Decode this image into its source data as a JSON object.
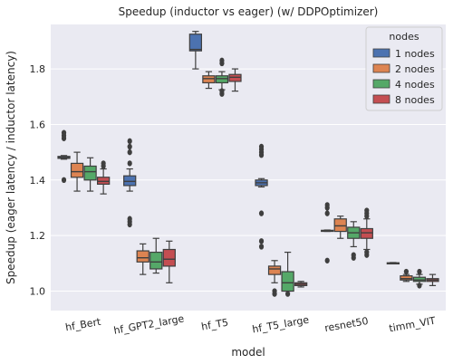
{
  "chart_data": {
    "type": "box",
    "title": "Speedup (inductor vs eager) (w/ DDPOptimizer)",
    "xlabel": "model",
    "ylabel": "Speedup (eager latency / inductor latency)",
    "ylim": [
      0.93,
      1.96
    ],
    "yticks": [
      "1.0",
      "1.2",
      "1.4",
      "1.6",
      "1.8"
    ],
    "categories": [
      "hf_Bert",
      "hf_GPT2_large",
      "hf_T5",
      "hf_T5_large",
      "resnet50",
      "timm_VIT"
    ],
    "grid": true,
    "legend": {
      "title": "nodes",
      "placement": "top-right"
    },
    "series": [
      {
        "name": "1 nodes",
        "color": "#4c72b0",
        "boxes": [
          {
            "whislo": 1.475,
            "q1": 1.478,
            "med": 1.481,
            "q3": 1.485,
            "whishi": 1.488,
            "fliers": [
              1.4,
              1.55,
              1.56,
              1.57
            ]
          },
          {
            "whislo": 1.36,
            "q1": 1.38,
            "med": 1.395,
            "q3": 1.415,
            "whishi": 1.44,
            "fliers": [
              1.24,
              1.25,
              1.26,
              1.46,
              1.5,
              1.52,
              1.54
            ]
          },
          {
            "whislo": 1.8,
            "q1": 1.865,
            "med": 1.87,
            "q3": 1.925,
            "whishi": 1.935,
            "fliers": []
          },
          {
            "whislo": 1.375,
            "q1": 1.38,
            "med": 1.39,
            "q3": 1.4,
            "whishi": 1.405,
            "fliers": [
              1.16,
              1.18,
              1.28,
              1.49,
              1.5,
              1.51,
              1.52
            ]
          },
          {
            "whislo": 1.215,
            "q1": 1.216,
            "med": 1.217,
            "q3": 1.219,
            "whishi": 1.22,
            "fliers": [
              1.11,
              1.28,
              1.3,
              1.31
            ]
          },
          {
            "whislo": 1.099,
            "q1": 1.1,
            "med": 1.101,
            "q3": 1.102,
            "whishi": 1.103,
            "fliers": []
          }
        ]
      },
      {
        "name": "2 nodes",
        "color": "#dd8452",
        "boxes": [
          {
            "whislo": 1.36,
            "q1": 1.41,
            "med": 1.43,
            "q3": 1.46,
            "whishi": 1.5,
            "fliers": []
          },
          {
            "whislo": 1.06,
            "q1": 1.105,
            "med": 1.12,
            "q3": 1.145,
            "whishi": 1.17,
            "fliers": []
          },
          {
            "whislo": 1.73,
            "q1": 1.75,
            "med": 1.765,
            "q3": 1.775,
            "whishi": 1.79,
            "fliers": []
          },
          {
            "whislo": 1.03,
            "q1": 1.06,
            "med": 1.08,
            "q3": 1.09,
            "whishi": 1.11,
            "fliers": [
              0.99,
              1.0
            ]
          },
          {
            "whislo": 1.19,
            "q1": 1.215,
            "med": 1.235,
            "q3": 1.26,
            "whishi": 1.27,
            "fliers": []
          },
          {
            "whislo": 1.035,
            "q1": 1.04,
            "med": 1.045,
            "q3": 1.055,
            "whishi": 1.06,
            "fliers": [
              1.07
            ]
          }
        ]
      },
      {
        "name": "4 nodes",
        "color": "#55a868",
        "boxes": [
          {
            "whislo": 1.36,
            "q1": 1.4,
            "med": 1.43,
            "q3": 1.45,
            "whishi": 1.48,
            "fliers": []
          },
          {
            "whislo": 1.065,
            "q1": 1.08,
            "med": 1.105,
            "q3": 1.14,
            "whishi": 1.19,
            "fliers": []
          },
          {
            "whislo": 1.725,
            "q1": 1.75,
            "med": 1.765,
            "q3": 1.775,
            "whishi": 1.79,
            "fliers": [
              1.71,
              1.72,
              1.82,
              1.83
            ]
          },
          {
            "whislo": 1.0,
            "q1": 1.0,
            "med": 1.03,
            "q3": 1.07,
            "whishi": 1.14,
            "fliers": [
              0.99
            ]
          },
          {
            "whislo": 1.16,
            "q1": 1.19,
            "med": 1.21,
            "q3": 1.23,
            "whishi": 1.25,
            "fliers": [
              1.12,
              1.13
            ]
          },
          {
            "whislo": 1.025,
            "q1": 1.035,
            "med": 1.04,
            "q3": 1.05,
            "whishi": 1.06,
            "fliers": [
              1.02,
              1.07
            ]
          }
        ]
      },
      {
        "name": "8 nodes",
        "color": "#c44e52",
        "boxes": [
          {
            "whislo": 1.35,
            "q1": 1.385,
            "med": 1.395,
            "q3": 1.41,
            "whishi": 1.44,
            "fliers": [
              1.45,
              1.46
            ]
          },
          {
            "whislo": 1.03,
            "q1": 1.09,
            "med": 1.115,
            "q3": 1.15,
            "whishi": 1.18,
            "fliers": []
          },
          {
            "whislo": 1.72,
            "q1": 1.755,
            "med": 1.77,
            "q3": 1.78,
            "whishi": 1.8,
            "fliers": []
          },
          {
            "whislo": 1.015,
            "q1": 1.02,
            "med": 1.025,
            "q3": 1.03,
            "whishi": 1.035,
            "fliers": []
          },
          {
            "whislo": 1.15,
            "q1": 1.19,
            "med": 1.21,
            "q3": 1.225,
            "whishi": 1.26,
            "fliers": [
              1.13,
              1.14,
              1.27,
              1.28,
              1.29
            ]
          },
          {
            "whislo": 1.02,
            "q1": 1.035,
            "med": 1.04,
            "q3": 1.045,
            "whishi": 1.06,
            "fliers": []
          }
        ]
      }
    ]
  }
}
